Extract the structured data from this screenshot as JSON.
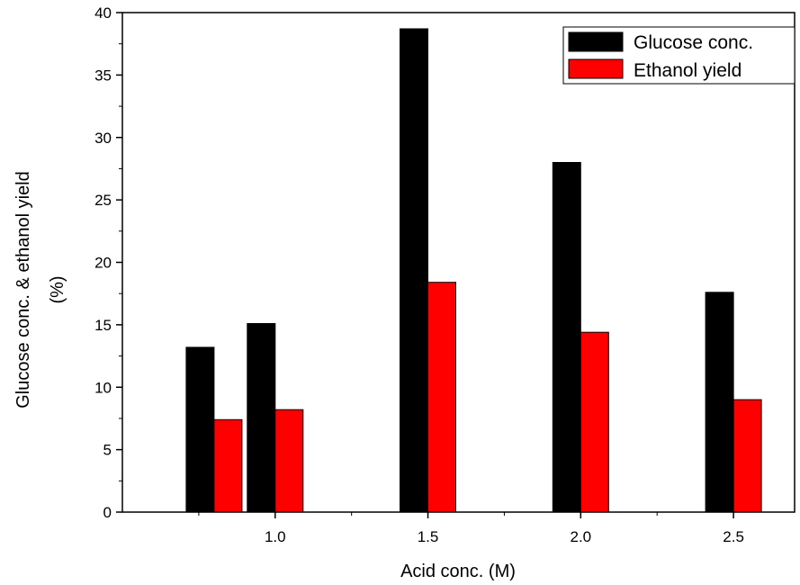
{
  "chart_data": {
    "type": "bar",
    "xlabel": "Acid conc. (M)",
    "ylabel_lines": [
      "Glucose conc. & ethanol yield",
      "(%)"
    ],
    "ylim": [
      0,
      40
    ],
    "y_ticks": [
      0,
      5,
      10,
      15,
      20,
      25,
      30,
      35,
      40
    ],
    "y_tick_labels": [
      "0",
      "5",
      "10",
      "15",
      "20",
      "25",
      "30",
      "35",
      "40"
    ],
    "xlim": [
      0.5,
      2.7
    ],
    "x_ticks": [
      1.0,
      1.5,
      2.0,
      2.5
    ],
    "x_tick_labels": [
      "1.0",
      "1.5",
      "2.0",
      "2.5"
    ],
    "groups": [
      0.8,
      1.0,
      1.5,
      2.0,
      2.5
    ],
    "series": [
      {
        "name": "Glucose conc.",
        "color": "#000000",
        "values": [
          13.2,
          15.1,
          38.7,
          28.0,
          17.6
        ]
      },
      {
        "name": "Ethanol yield",
        "color": "#ff0000",
        "values": [
          7.4,
          8.2,
          18.4,
          14.4,
          9.0
        ]
      }
    ],
    "legend_position": "top-right",
    "grid": false
  }
}
